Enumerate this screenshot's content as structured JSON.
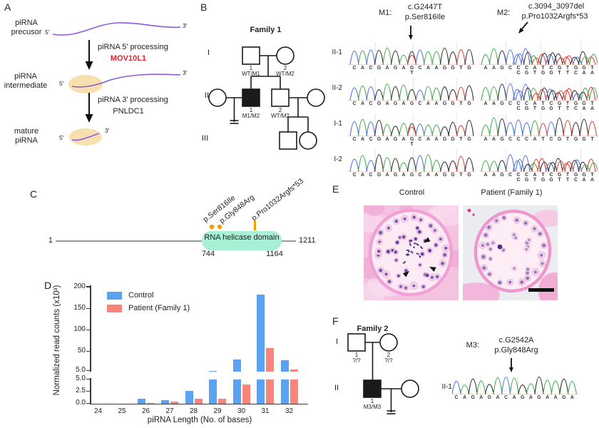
{
  "panel_labels": {
    "a": "A",
    "b": "B",
    "c": "C",
    "d": "D",
    "e": "E",
    "f": "F"
  },
  "colors": {
    "trace": {
      "A": "#3fae49",
      "C": "#4a6fe3",
      "G": "#2b2b2b",
      "T": "#e8392e"
    },
    "enzyme_red": "#e8232d",
    "purple": "#8a5ce0",
    "tan": "#f8dfae",
    "mint": "#a7f0d6",
    "orange": "#f59e00",
    "pedigree": "#1a1a1a"
  },
  "panel_a": {
    "stages": [
      {
        "line1": "piRNA",
        "line2": "precusor"
      },
      {
        "line1": "piRNA",
        "line2": "intermediate"
      },
      {
        "line1": "mature",
        "line2": "piRNA"
      }
    ],
    "steps": [
      {
        "label": "piRNA 5' processing",
        "enzyme": "MOV10L1"
      },
      {
        "label": "piRNA 3' processing",
        "enzyme": "PNLDC1"
      }
    ],
    "five": "5'",
    "three": "3'"
  },
  "panel_b": {
    "family_title": "Family 1",
    "generations": [
      "I",
      "II",
      "III"
    ],
    "members": {
      "i1": {
        "num": "1",
        "genotype": "WT/M1"
      },
      "i2": {
        "num": "2",
        "genotype": "WT/M2"
      },
      "ii1": {
        "num": "1",
        "genotype": "M1/M2"
      },
      "ii2": {
        "num": "2",
        "genotype": "WT/M2"
      }
    },
    "row_labels": [
      "II-1",
      "II-2",
      "I-1",
      "I-2"
    ],
    "m1": {
      "name": "M1:",
      "cdna": "c.G2447T",
      "protein": "p.Ser816Ile",
      "wild_sequence": "CACGAGAGCAAGGTG",
      "mutation_index": 7,
      "mutant_base": "T",
      "row_het": [
        true,
        false,
        true,
        false
      ]
    },
    "m2": {
      "name": "M2:",
      "cdna": "c.3094_3097del",
      "protein": "p.Pro1032Argfs*53",
      "wild_sequence": "AAGCCCATCGTGGT",
      "frameshift_sequence": "CGTGGTTCAA",
      "frameshift_offset": 4,
      "row_het": [
        true,
        true,
        false,
        true
      ]
    }
  },
  "panel_c": {
    "start": "1",
    "end": "1211",
    "domain": {
      "label": "RNA helicase domain",
      "start": "744",
      "end": "1164"
    },
    "mutations": [
      {
        "label": "p.Ser816Ile"
      },
      {
        "label": "p.Gly848Arg"
      },
      {
        "label": "p.Pro1032Argfs*53"
      }
    ]
  },
  "chart_data": {
    "type": "bar",
    "categories": [
      24,
      25,
      26,
      27,
      28,
      29,
      30,
      31,
      32
    ],
    "series": [
      {
        "name": "Control",
        "color": "#5BA3F0",
        "values": [
          0,
          0,
          1.0,
          0.8,
          2.7,
          7,
          33,
          185,
          32
        ]
      },
      {
        "name": "Patient (Family 1)",
        "color": "#F8847C",
        "values": [
          0,
          0,
          0.2,
          0.4,
          1.1,
          1.1,
          4.0,
          60,
          10
        ]
      }
    ],
    "xlabel": "piRNA Length (No. of bases)",
    "ylabel": "Normalized read counts (x10³)",
    "axis_break": {
      "lower_range": [
        0,
        5
      ],
      "lower_ticks": [
        "0.0",
        "2.5",
        "5.0"
      ],
      "upper_range": [
        5,
        200
      ],
      "upper_ticks": [
        "5.0",
        "50",
        "100",
        "150",
        "200"
      ]
    },
    "legend_position": "top-left",
    "grid": false
  },
  "panel_e": {
    "titles": [
      "Control",
      "Patient (Family 1)"
    ]
  },
  "panel_f": {
    "family_title": "Family 2",
    "generations": [
      "I",
      "II"
    ],
    "members": {
      "i1": {
        "num": "1",
        "genotype": "?/?"
      },
      "i2": {
        "num": "2",
        "genotype": "?/?"
      },
      "ii1": {
        "num": "1",
        "genotype": "M3/M3"
      }
    },
    "row_label": "II-1",
    "m3": {
      "name": "M3:",
      "cdna": "c.G2542A",
      "protein": "p.Gly848Arg",
      "sequence": "CAGAGACAGAGAAGA",
      "arrow_index": 7
    }
  }
}
